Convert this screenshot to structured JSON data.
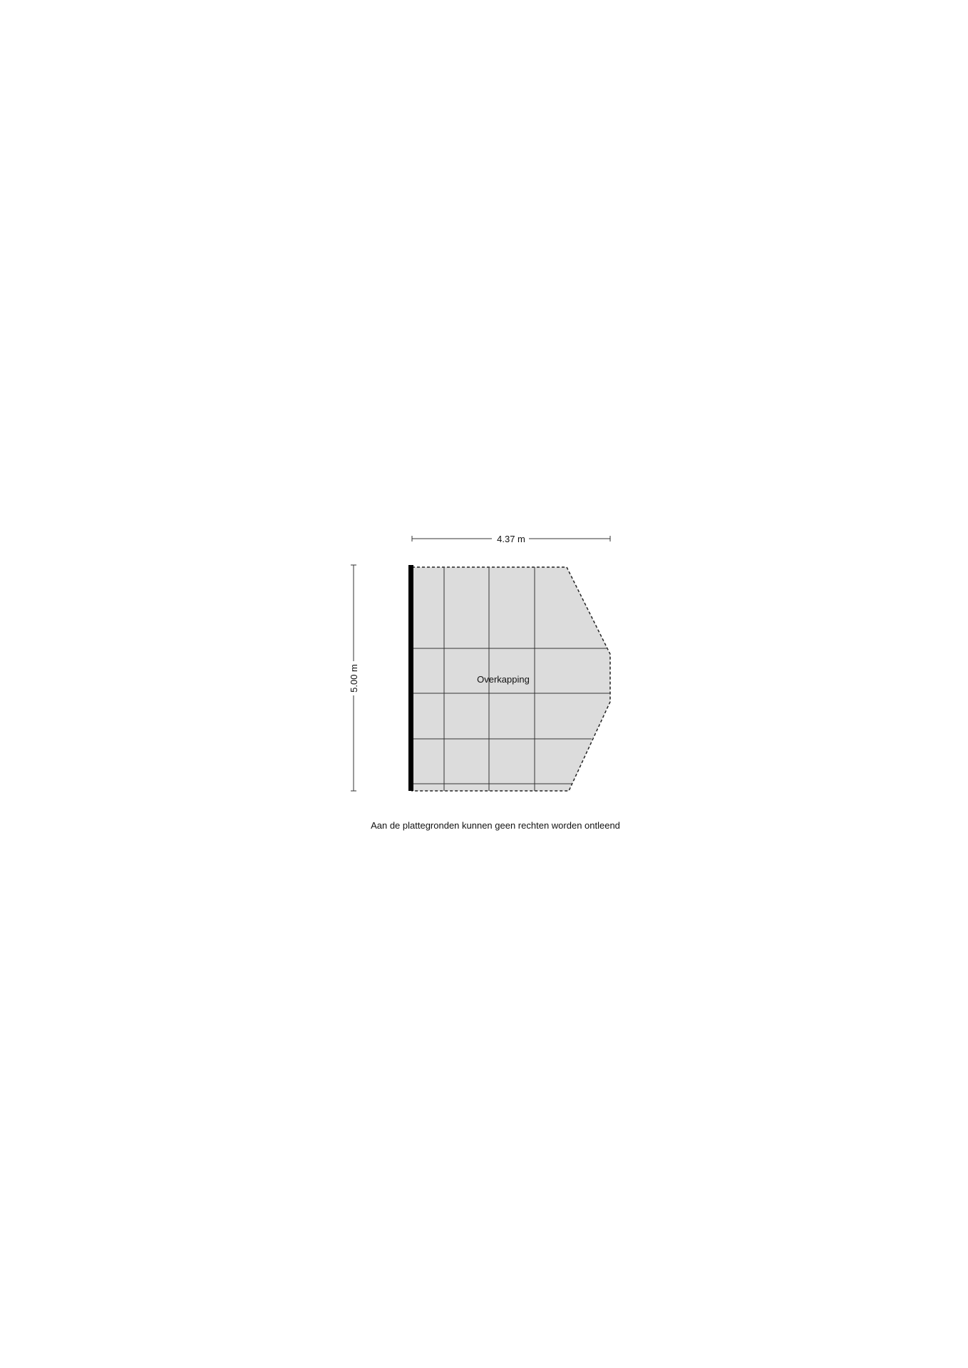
{
  "plan": {
    "width_label": "4.37 m",
    "height_label": "5.00 m",
    "room_label": "Overkapping",
    "disclaimer": "Aan de plattegronden kunnen geen rechten worden ontleend"
  },
  "colors": {
    "fill": "#dcdcdc",
    "line": "#1a1a1a"
  }
}
